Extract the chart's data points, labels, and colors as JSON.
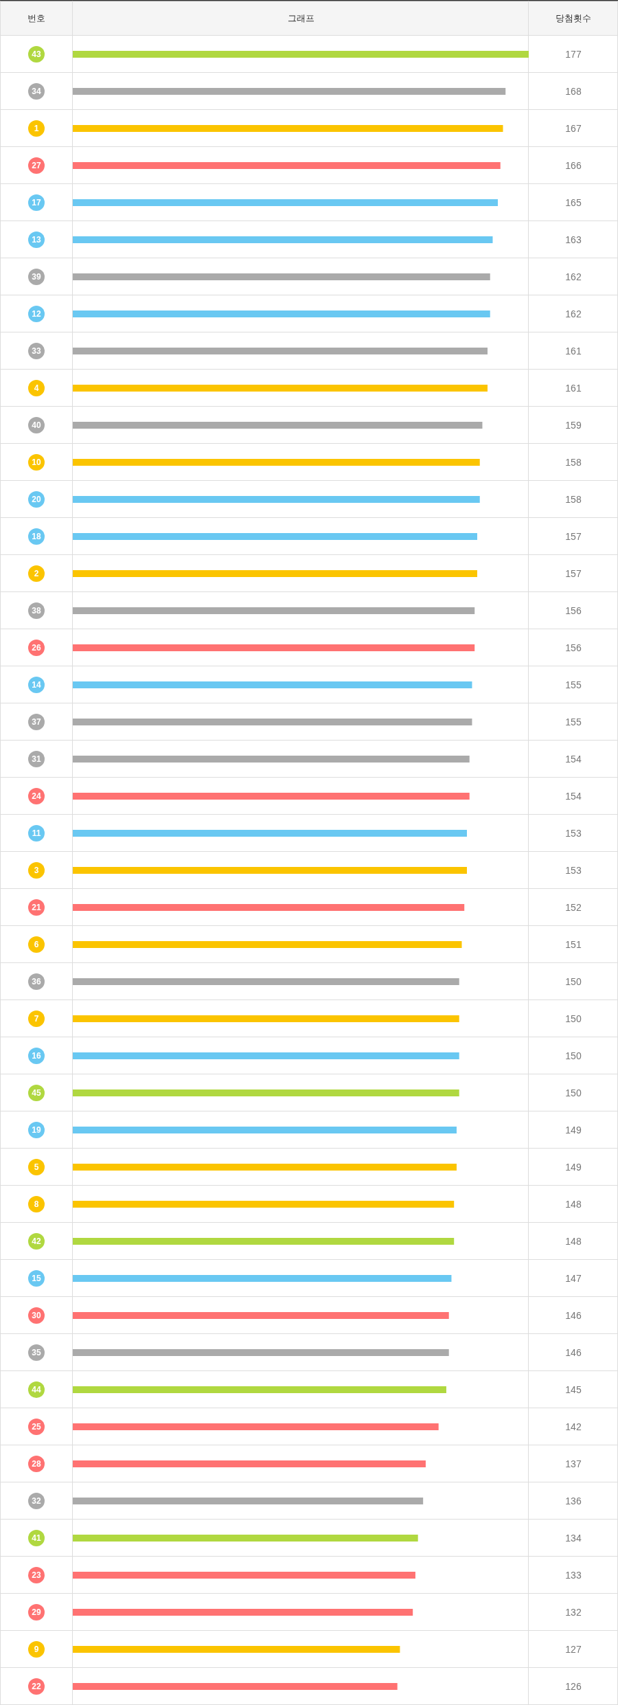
{
  "chart_data": {
    "type": "bar",
    "orientation": "horizontal",
    "ylabel": "번호",
    "title": "그래프",
    "xlabel": "당첨횟수",
    "categories": [
      "43",
      "34",
      "1",
      "27",
      "17",
      "13",
      "39",
      "12",
      "33",
      "4",
      "40",
      "10",
      "20",
      "18",
      "2",
      "38",
      "26",
      "14",
      "37",
      "31",
      "24",
      "11",
      "3",
      "21",
      "6",
      "36",
      "7",
      "16",
      "45",
      "19",
      "5",
      "8",
      "42",
      "15",
      "30",
      "35",
      "44",
      "25",
      "28",
      "32",
      "41",
      "23",
      "29",
      "9",
      "22"
    ],
    "values": [
      177,
      168,
      167,
      166,
      165,
      163,
      162,
      162,
      161,
      161,
      159,
      158,
      158,
      157,
      157,
      156,
      156,
      155,
      155,
      154,
      154,
      153,
      153,
      152,
      151,
      150,
      150,
      150,
      150,
      149,
      149,
      148,
      148,
      147,
      146,
      146,
      145,
      142,
      137,
      136,
      134,
      133,
      132,
      127,
      126
    ],
    "colors": [
      "#b0d840",
      "#aaaaaa",
      "#fbc400",
      "#ff7272",
      "#69c8f2",
      "#69c8f2",
      "#aaaaaa",
      "#69c8f2",
      "#aaaaaa",
      "#fbc400",
      "#aaaaaa",
      "#fbc400",
      "#69c8f2",
      "#69c8f2",
      "#fbc400",
      "#aaaaaa",
      "#ff7272",
      "#69c8f2",
      "#aaaaaa",
      "#aaaaaa",
      "#ff7272",
      "#69c8f2",
      "#fbc400",
      "#ff7272",
      "#fbc400",
      "#aaaaaa",
      "#fbc400",
      "#69c8f2",
      "#b0d840",
      "#69c8f2",
      "#fbc400",
      "#fbc400",
      "#b0d840",
      "#69c8f2",
      "#ff7272",
      "#aaaaaa",
      "#b0d840",
      "#ff7272",
      "#ff7272",
      "#aaaaaa",
      "#b0d840",
      "#ff7272",
      "#ff7272",
      "#fbc400",
      "#ff7272"
    ],
    "xlim": [
      0,
      177
    ],
    "data_labels": true
  }
}
